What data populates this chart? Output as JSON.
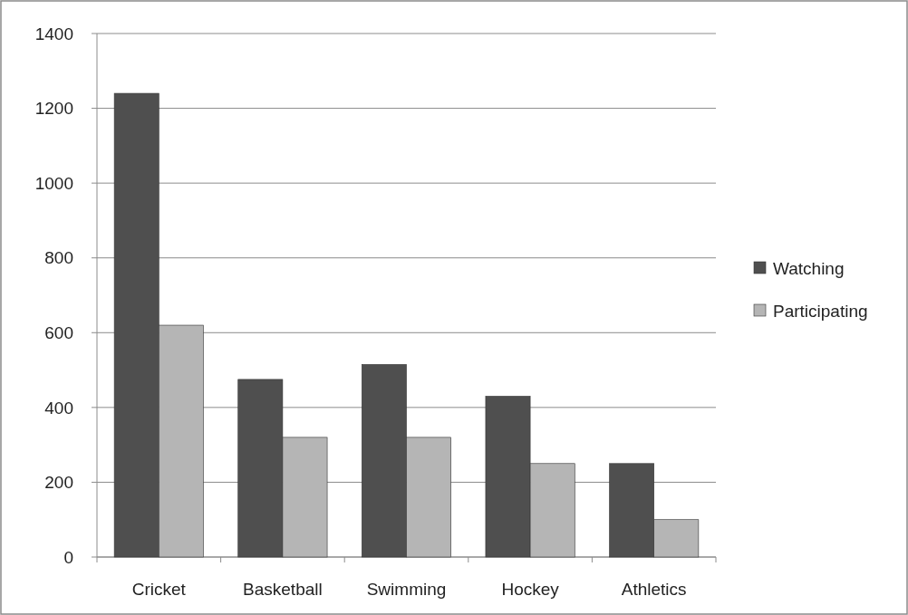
{
  "chart_data": {
    "type": "bar",
    "categories": [
      "Cricket",
      "Basketball",
      "Swimming",
      "Hockey",
      "Athletics"
    ],
    "series": [
      {
        "name": "Watching",
        "color": "#4f4f4f",
        "values": [
          1240,
          475,
          515,
          430,
          250
        ]
      },
      {
        "name": "Participating",
        "color": "#b5b5b5",
        "values": [
          620,
          320,
          320,
          250,
          100
        ]
      }
    ],
    "ylim": [
      0,
      1400
    ],
    "yticks": [
      0,
      200,
      400,
      600,
      800,
      1000,
      1200,
      1400
    ],
    "grid": "y",
    "legend": "right"
  }
}
